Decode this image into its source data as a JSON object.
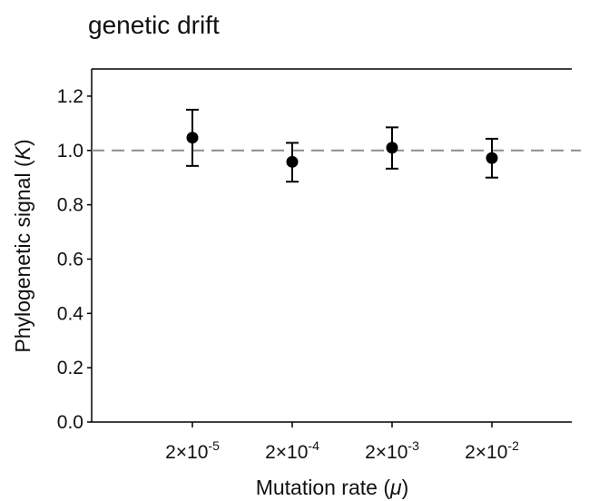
{
  "title": "genetic drift",
  "chart_data": {
    "type": "scatter",
    "title": "genetic drift",
    "xlabel": "Mutation rate (μ)",
    "xlabel_parts": {
      "main": "Mutation rate (",
      "symbol": "μ",
      "close": ")"
    },
    "ylabel": "Phylogenetic signal (K)",
    "ylabel_parts": {
      "main": "Phylogenetic signal (",
      "symbol": "K",
      "close": ")"
    },
    "categories": [
      {
        "base": "2×10",
        "exp": "-5"
      },
      {
        "base": "2×10",
        "exp": "-4"
      },
      {
        "base": "2×10",
        "exp": "-3"
      },
      {
        "base": "2×10",
        "exp": "-2"
      }
    ],
    "series": [
      {
        "values": [
          1.047,
          0.958,
          1.01,
          0.972
        ],
        "err_upper": [
          1.15,
          1.028,
          1.085,
          1.043
        ],
        "err_lower": [
          0.943,
          0.885,
          0.933,
          0.9
        ]
      }
    ],
    "reference_line": 1.0,
    "ylim": [
      0,
      1.3
    ],
    "yticks": [
      0.0,
      0.2,
      0.4,
      0.6,
      0.8,
      1.0,
      1.2
    ],
    "ytick_labels": [
      "0.0",
      "0.2",
      "0.4",
      "0.6",
      "0.8",
      "1.0",
      "1.2"
    ],
    "grid": false,
    "colors": {
      "marker": "#000000",
      "reference": "#8c8c8c",
      "axis": "#000000"
    }
  }
}
